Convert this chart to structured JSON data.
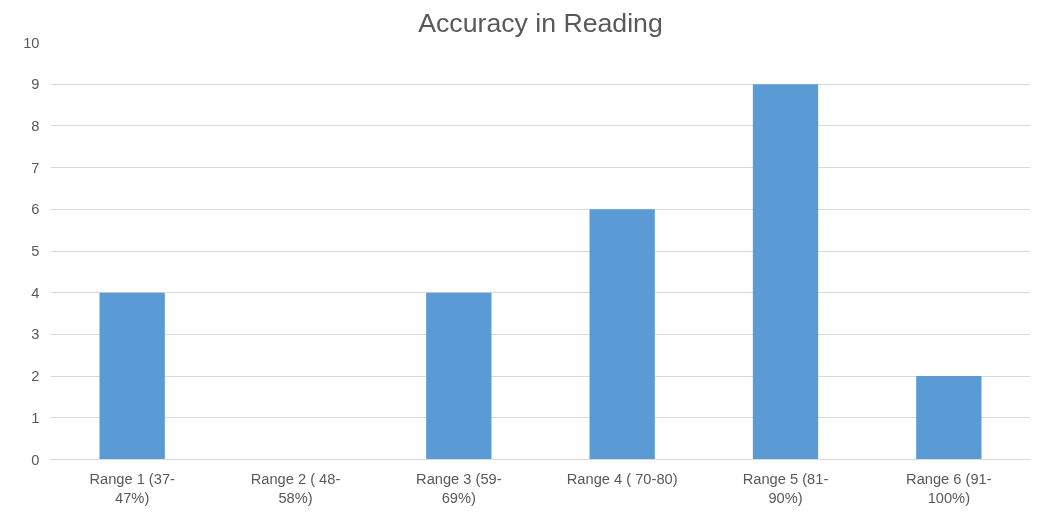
{
  "chart_data": {
    "type": "bar",
    "title": "Accuracy in Reading",
    "categories": [
      "Range 1 (37-\n47%)",
      "Range 2 ( 48-\n58%)",
      "Range 3 (59-\n69%)",
      "Range 4 ( 70-80)",
      "Range 5 (81-\n90%)",
      "Range 6 (91-\n100%)"
    ],
    "values": [
      4,
      0,
      4,
      6,
      9,
      2
    ],
    "color": "#5b9bd5",
    "ylim": [
      0,
      10
    ],
    "yticks": [
      0,
      1,
      2,
      3,
      4,
      5,
      6,
      7,
      8,
      9,
      10
    ],
    "grid": "y"
  }
}
